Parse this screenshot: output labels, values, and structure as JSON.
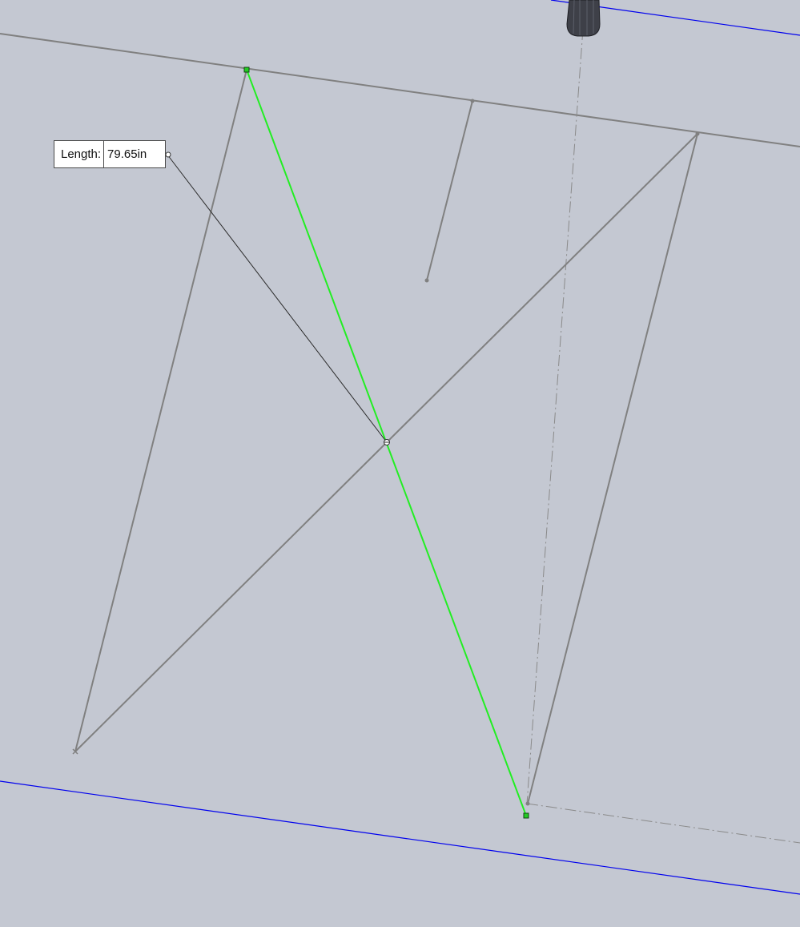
{
  "colors": {
    "background": "#c4c8d2",
    "sketch_line": "#808080",
    "selected_line": "#22ee22",
    "selected_handle": "#22cc22",
    "reference_line": "#0000ee",
    "centerline": "#8a8a8a",
    "leader": "#2a2a2a",
    "tool_body": "#3e4048"
  },
  "dimension": {
    "label": "Length:",
    "value": "79.65in"
  }
}
